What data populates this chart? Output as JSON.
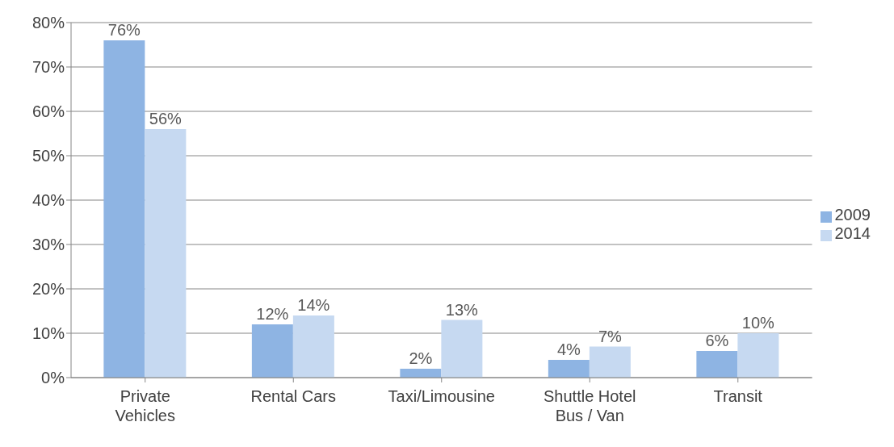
{
  "chart_data": {
    "type": "bar",
    "categories": [
      "Private Vehicles",
      "Rental Cars",
      "Taxi/Limousine",
      "Shuttle Hotel Bus / Van",
      "Transit"
    ],
    "series": [
      {
        "name": "2009",
        "color": "#8eb4e3",
        "values": [
          76,
          12,
          2,
          4,
          6
        ],
        "value_labels": [
          "76%",
          "12%",
          "2%",
          "4%",
          "6%"
        ]
      },
      {
        "name": "2014",
        "color": "#c6d9f1",
        "values": [
          56,
          14,
          13,
          7,
          10
        ],
        "value_labels": [
          "56%",
          "14%",
          "13%",
          "7%",
          "10%"
        ]
      }
    ],
    "ylim": [
      0,
      80
    ],
    "yticks": [
      {
        "value": 0,
        "label": "0%"
      },
      {
        "value": 10,
        "label": "10%"
      },
      {
        "value": 20,
        "label": "20%"
      },
      {
        "value": 30,
        "label": "30%"
      },
      {
        "value": 40,
        "label": "40%"
      },
      {
        "value": 50,
        "label": "50%"
      },
      {
        "value": 60,
        "label": "60%"
      },
      {
        "value": 70,
        "label": "70%"
      },
      {
        "value": 80,
        "label": "80%"
      }
    ],
    "grid": "y",
    "legend": "right"
  }
}
